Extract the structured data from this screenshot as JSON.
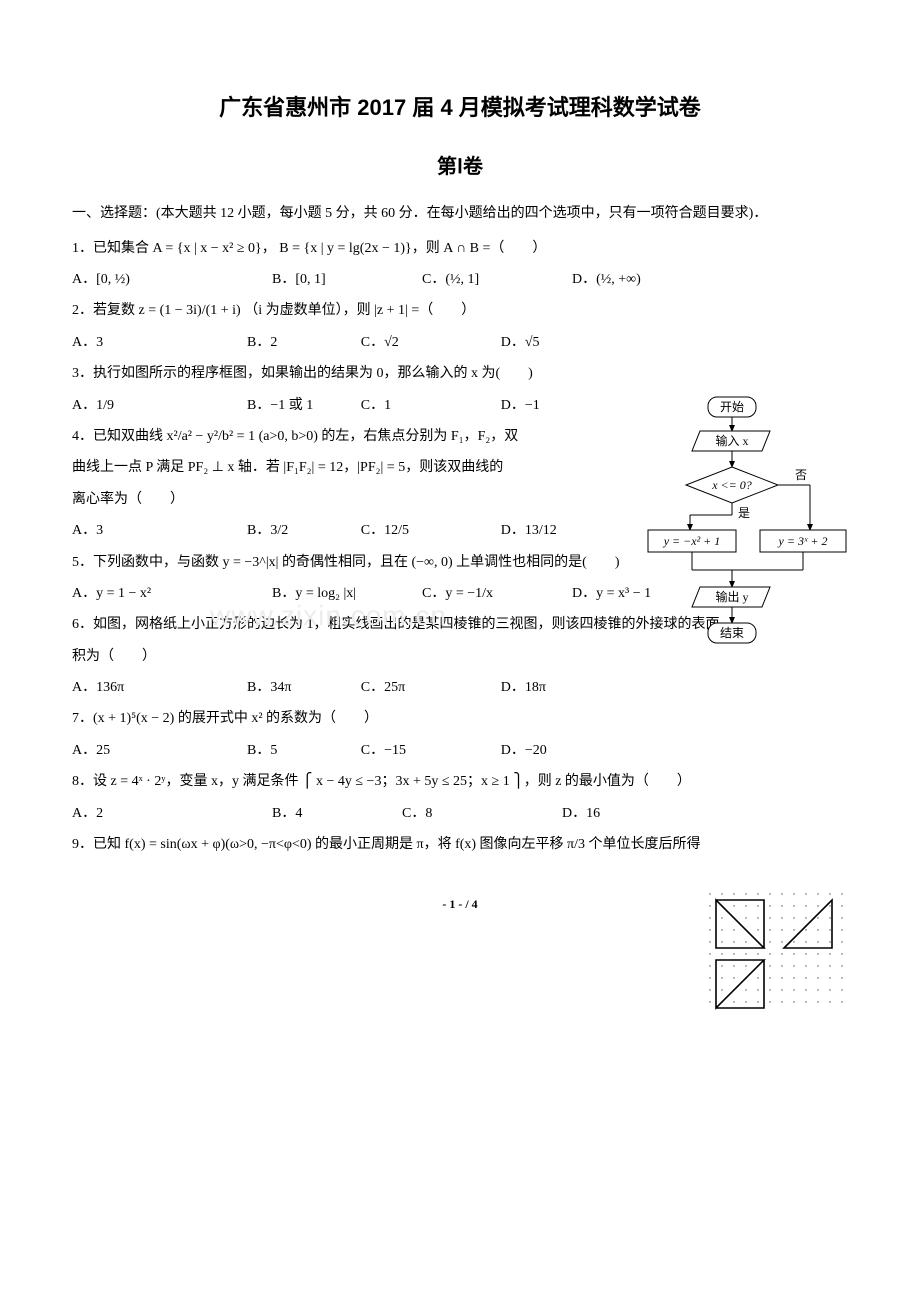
{
  "title": "广东省惠州市 2017 届 4 月模拟考试理科数学试卷",
  "subtitle": "第Ⅰ卷",
  "section1": "一、选择题：(本大题共 12 小题，每小题 5 分，共 60 分．在每小题给出的四个选项中，只有一项符合题目要求)．",
  "q1": "1．已知集合 A = {x | x − x² ≥ 0}，  B = {x | y = lg(2x − 1)}，则 A ∩ B =（　　）",
  "q1a": "A．[0, ½)",
  "q1b": "B．[0, 1]",
  "q1c": "C．(½, 1]",
  "q1d": "D．(½, +∞)",
  "q2": "2．若复数 z = (1 − 3i)/(1 + i) （i 为虚数单位），则 |z + 1| =（　　）",
  "q2a": "A．3",
  "q2b": "B．2",
  "q2c": "C．√2",
  "q2d": "D．√5",
  "q3": "3．执行如图所示的程序框图，如果输出的结果为 0，那么输入的 x 为(　　)",
  "q3a": "A．1/9",
  "q3b": "B．−1 或 1",
  "q3c": "C．1",
  "q3d": "D．−1",
  "q4": "4．已知双曲线 x²/a² − y²/b² = 1 (a>0, b>0) 的左，右焦点分别为 F₁，F₂，双",
  "q4b_line": "曲线上一点 P 满足 PF₂ ⊥ x 轴．若 |F₁F₂| = 12，|PF₂| = 5，则该双曲线的",
  "q4c_line": "离心率为（　　）",
  "q4a_opt": "A．3",
  "q4b_opt": "B．3/2",
  "q4c_opt": "C．12/5",
  "q4d_opt": "D．13/12",
  "q5": "5．下列函数中，与函数 y = −3^|x| 的奇偶性相同，且在 (−∞, 0) 上单调性也相同的是(　　)",
  "q5a": "A．y = 1 − x²",
  "q5b": "B．y = log₂ |x|",
  "q5c": "C．y = −1/x",
  "q5d": "D．y = x³ − 1",
  "q6": "6．如图，网格纸上小正方形的边长为 1，粗实线画出的是某四棱锥的三视图，则该四棱锥的外接球的表面",
  "q6_line2": "积为（　　）",
  "q6a": "A．136π",
  "q6b": "B．34π",
  "q6c": "C．25π",
  "q6d": "D．18π",
  "q7": "7．(x + 1)⁵(x − 2) 的展开式中 x² 的系数为（　　）",
  "q7a": "A．25",
  "q7b": "B．5",
  "q7c": "C．−15",
  "q7d": "D．−20",
  "q8": "8．设 z = 4ˣ · 2ʸ，变量 x，y 满足条件 ⎧ x − 4y ≤ −3；3x + 5y ≤ 25；x ≥ 1 ⎫，则 z 的最小值为（　　）",
  "q8a": "A．2",
  "q8b": "B．4",
  "q8c": "C．8",
  "q8d": "D．16",
  "q9": "9．已知 f(x) = sin(ωx + φ)(ω>0, −π<φ<0) 的最小正周期是 π，将 f(x) 图像向左平移 π/3 个单位长度后所得",
  "footer": "- 1 - / 4",
  "flowchart": {
    "start": "开始",
    "input": "输入 x",
    "cond": "x <= 0?",
    "no": "否",
    "yes": "是",
    "left_assign": "y = −x² + 1",
    "right_assign": "y = 3ˣ + 2",
    "output": "输出 y",
    "end": "结束",
    "stroke": "#000000",
    "fill": "#ffffff",
    "font_size": 12
  },
  "threeview": {
    "grid_dots": 8,
    "dot_color": "#555555",
    "line_color": "#000000",
    "line_width": 1.6
  },
  "watermark": "www.zixin.com.cn"
}
